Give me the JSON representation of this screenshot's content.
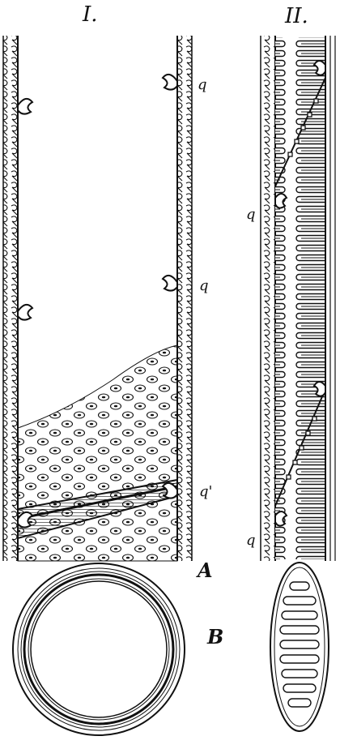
{
  "figure": {
    "panel_1_label": "I.",
    "panel_2_label": "II.",
    "label_A": "A",
    "label_B": "B",
    "pit_label": "q",
    "pit_label_prime": "q'"
  },
  "colors": {
    "ink": "#111111",
    "paper": "#ffffff"
  }
}
